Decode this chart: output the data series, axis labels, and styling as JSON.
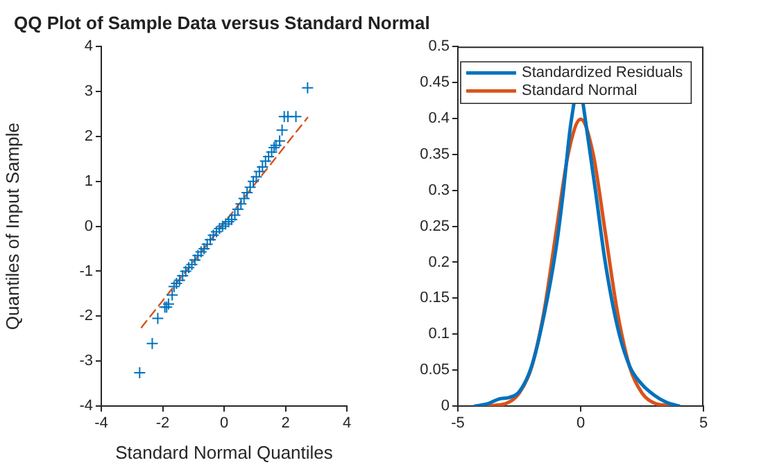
{
  "chart_data": [
    {
      "type": "scatter",
      "title": "QQ Plot of Sample Data versus Standard Normal",
      "xlabel": "Standard Normal Quantiles",
      "ylabel": "Quantiles of Input Sample",
      "xlim": [
        -4,
        4
      ],
      "xticks": [
        -4,
        -2,
        0,
        2,
        4
      ],
      "ylim": [
        -4,
        4
      ],
      "yticks": [
        -4,
        -3,
        -2,
        -1,
        0,
        1,
        2,
        3,
        4
      ],
      "grid": false,
      "legend": false,
      "series": [
        {
          "type": "scatter",
          "color": "#0072bd",
          "marker": "cross",
          "x": [
            -2.75,
            -2.34,
            -2.16,
            -1.93,
            -1.87,
            -1.81,
            -1.69,
            -1.63,
            -1.55,
            -1.45,
            -1.35,
            -1.25,
            -1.15,
            -1.05,
            -0.95,
            -0.85,
            -0.75,
            -0.65,
            -0.55,
            -0.45,
            -0.35,
            -0.25,
            -0.15,
            -0.05,
            0.05,
            0.15,
            0.25,
            0.35,
            0.45,
            0.55,
            0.65,
            0.75,
            0.85,
            0.95,
            1.05,
            1.15,
            1.25,
            1.35,
            1.45,
            1.55,
            1.63,
            1.69,
            1.81,
            1.89,
            1.96,
            2.08,
            2.34,
            2.72
          ],
          "values": [
            -3.26,
            -2.61,
            -2.05,
            -1.8,
            -1.8,
            -1.73,
            -1.53,
            -1.34,
            -1.27,
            -1.2,
            -1.1,
            -1.0,
            -0.92,
            -0.85,
            -0.75,
            -0.65,
            -0.57,
            -0.5,
            -0.4,
            -0.3,
            -0.2,
            -0.12,
            -0.05,
            0.0,
            0.05,
            0.1,
            0.15,
            0.25,
            0.38,
            0.5,
            0.62,
            0.75,
            0.87,
            1.0,
            1.1,
            1.22,
            1.32,
            1.45,
            1.55,
            1.65,
            1.75,
            1.8,
            1.9,
            2.14,
            2.44,
            2.44,
            2.44,
            3.08
          ]
        },
        {
          "type": "line",
          "color": "#d95319",
          "line_style": "dashed",
          "marker": "none",
          "x": [
            -2.69,
            2.72
          ],
          "values": [
            -2.25,
            2.42
          ]
        }
      ]
    },
    {
      "type": "line",
      "xlim": [
        -5,
        5
      ],
      "xticks": [
        -5,
        0,
        5
      ],
      "ylim": [
        0,
        0.5
      ],
      "yticks": [
        0,
        0.05,
        0.1,
        0.15,
        0.2,
        0.25,
        0.3,
        0.35,
        0.4,
        0.45,
        0.5
      ],
      "grid": false,
      "legend": "top",
      "marker": "none",
      "line_style": "solid",
      "series": [
        {
          "name": "Standardized Residuals",
          "color": "#0072bd",
          "x": [
            -4.3,
            -3.8,
            -3.3,
            -2.9,
            -2.5,
            -2,
            -1.5,
            -1,
            -0.7,
            -0.45,
            -0.28,
            0,
            0.1,
            0.35,
            0.6,
            1,
            1.5,
            2,
            2.5,
            3,
            3.5,
            4
          ],
          "values": [
            0,
            0.003,
            0.01,
            0.012,
            0.02,
            0.055,
            0.125,
            0.22,
            0.3,
            0.38,
            0.42,
            null,
            0.42,
            0.36,
            0.3,
            0.2,
            0.11,
            0.055,
            0.03,
            0.015,
            0.005,
            0
          ]
        },
        {
          "name": "Standard Normal",
          "color": "#d95319",
          "x": [
            -4,
            -3.5,
            -3,
            -2.5,
            -2,
            -1.5,
            -1,
            -0.5,
            0,
            0.5,
            1,
            1.5,
            2,
            2.5,
            3,
            3.5,
            4
          ],
          "values": [
            0,
            0.001,
            0.004,
            0.018,
            0.054,
            0.13,
            0.242,
            0.352,
            0.399,
            0.352,
            0.242,
            0.13,
            0.054,
            0.018,
            0.004,
            0.001,
            0
          ]
        }
      ]
    }
  ]
}
